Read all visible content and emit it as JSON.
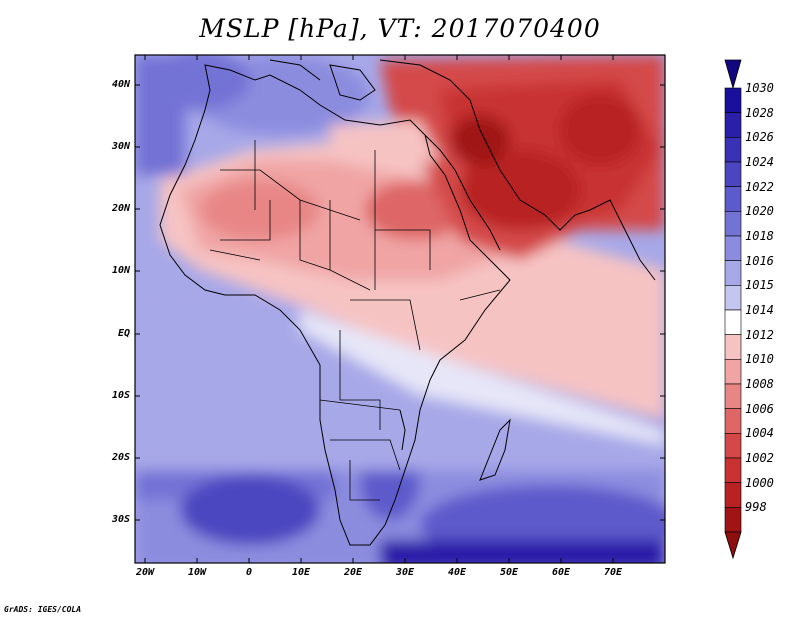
{
  "title": "MSLP [hPa], VT: 2017070400",
  "credit": "GrADS: IGES/COLA",
  "map": {
    "lat_labels": [
      "40N",
      "30N",
      "20N",
      "10N",
      "EQ",
      "10S",
      "20S",
      "30S"
    ],
    "lon_labels": [
      "20W",
      "10W",
      "0",
      "10E",
      "20E",
      "30E",
      "40E",
      "50E",
      "60E",
      "70E"
    ],
    "lat_values": [
      40,
      30,
      20,
      10,
      0,
      -10,
      -20,
      -30
    ],
    "lon_values": [
      -20,
      -10,
      0,
      10,
      20,
      30,
      40,
      50,
      60,
      70
    ],
    "lon_range": [
      -22,
      80
    ],
    "lat_range": [
      -37,
      45
    ]
  },
  "colorbar": {
    "labels": [
      "1030",
      "1028",
      "1026",
      "1024",
      "1022",
      "1020",
      "1018",
      "1016",
      "1015",
      "1014",
      "1012",
      "1010",
      "1008",
      "1006",
      "1004",
      "1002",
      "1000",
      "998"
    ],
    "colors": [
      "#1a0f9c",
      "#2a1fa8",
      "#3a32b4",
      "#4b46c0",
      "#5d5acb",
      "#7372d5",
      "#8c8cdf",
      "#a7a8e8",
      "#c4c6f0",
      "#ffffff",
      "#f6c3c3",
      "#f0a4a4",
      "#e88686",
      "#de6666",
      "#d44848",
      "#c83232",
      "#b82222",
      "#a01414"
    ]
  }
}
